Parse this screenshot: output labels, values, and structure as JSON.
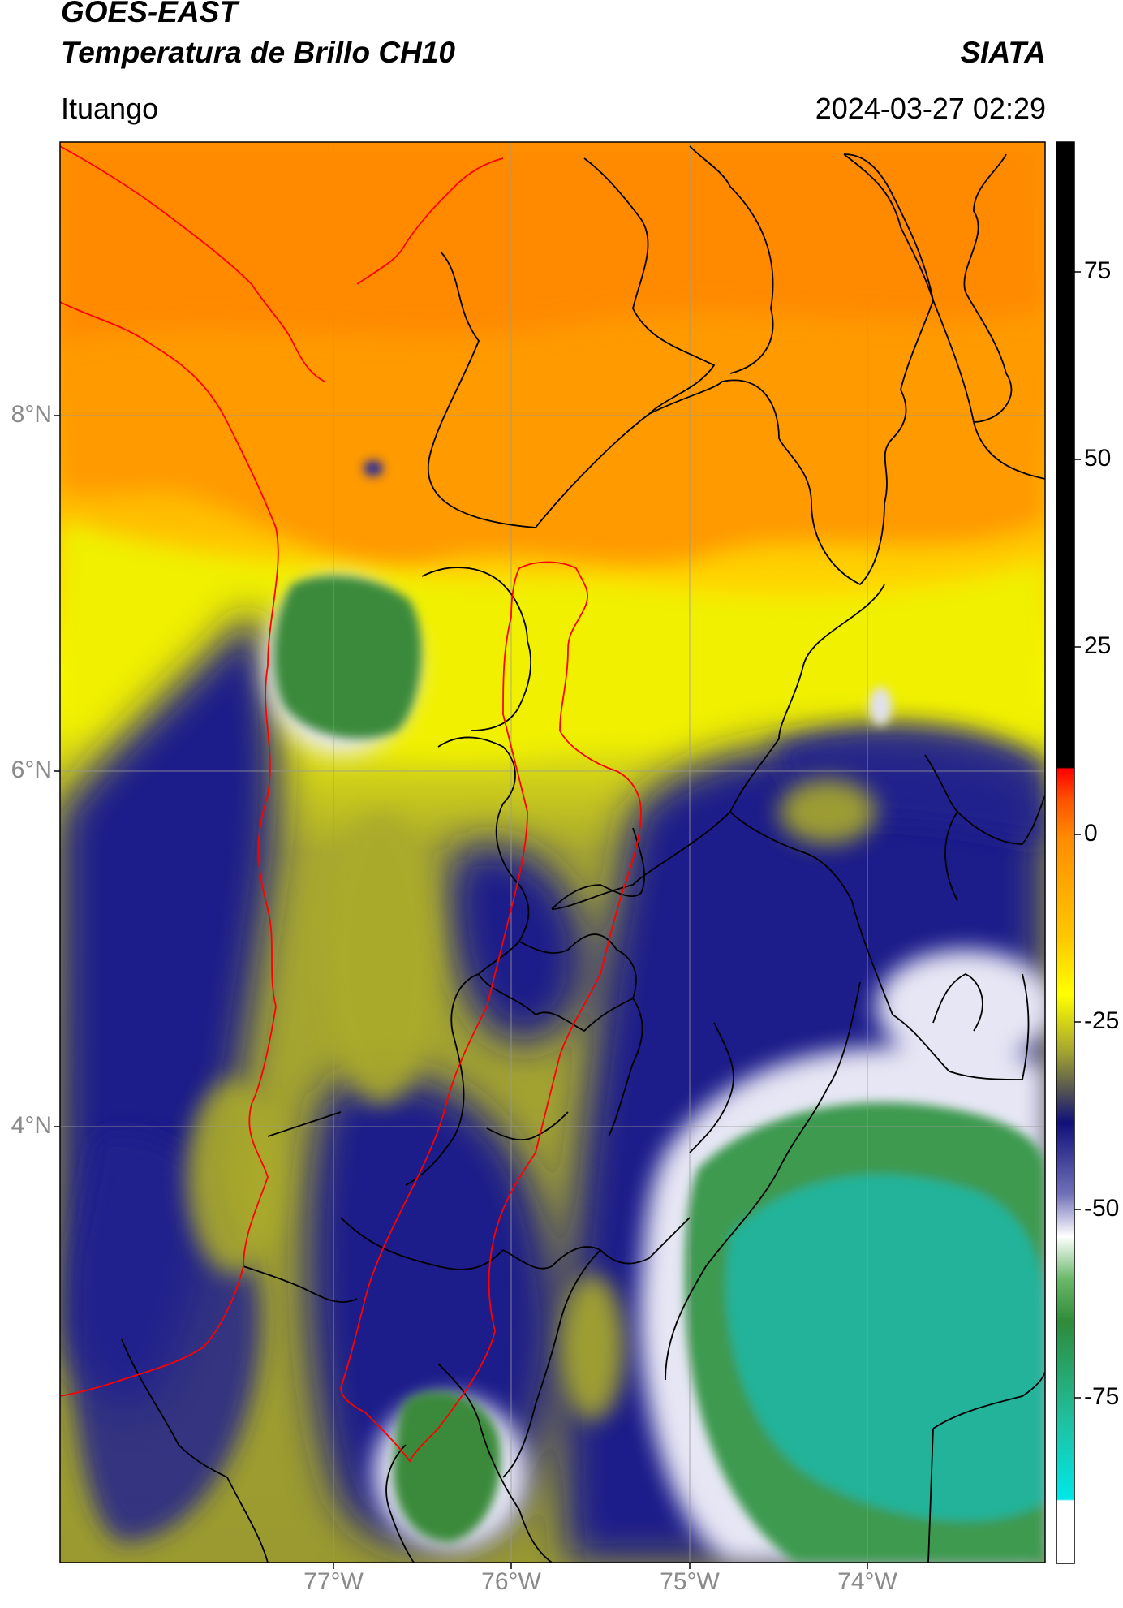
{
  "header": {
    "title_line1": "GOES-EAST",
    "title_line2": "Temperatura de Brillo CH10",
    "agency": "SIATA",
    "region": "Ituango",
    "timestamp": "2024-03-27 02:29"
  },
  "axes": {
    "lat_labels": [
      "8°N",
      "6°N",
      "4°N"
    ],
    "lon_labels": [
      "77°W",
      "76°W",
      "75°W",
      "74°W"
    ]
  },
  "colorbar": {
    "tick_labels": [
      "75",
      "50",
      "25",
      "0",
      "-25",
      "-50",
      "-75"
    ],
    "colors": {
      "hot_top": "#000000",
      "red": "#ff2a00",
      "orange": "#ff9a00",
      "yellow": "#ffff00",
      "olive": "#8c8c2a",
      "navy": "#1a1a8c",
      "white": "#ffffff",
      "green": "#2e8b3a",
      "teal": "#20c0a0",
      "cyan": "#00e5e5"
    }
  },
  "map_colors": {
    "border_black": "#000000",
    "border_red": "#ff0000",
    "gridline": "#9a9a9a"
  }
}
